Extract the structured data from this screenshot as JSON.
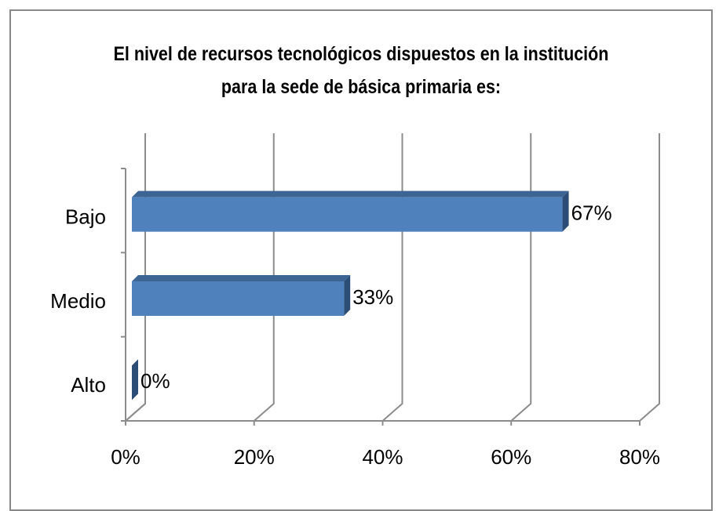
{
  "chart_data": {
    "type": "bar3d_horizontal",
    "title": "El nivel de recursos tecnológicos dispuestos en la institución\npara la sede de básica primaria  es:",
    "categories": [
      "Bajo",
      "Medio",
      "Alto"
    ],
    "values": [
      67,
      33,
      0
    ],
    "value_labels": [
      "67%",
      "33%",
      "0%"
    ],
    "color": "#4f81bd",
    "xlim": [
      0,
      80
    ],
    "xticks": [
      {
        "value": 0,
        "label": "0%"
      },
      {
        "value": 20,
        "label": "20%"
      },
      {
        "value": 40,
        "label": "40%"
      },
      {
        "value": 60,
        "label": "60%"
      },
      {
        "value": 80,
        "label": "80%"
      }
    ],
    "grid": true
  }
}
